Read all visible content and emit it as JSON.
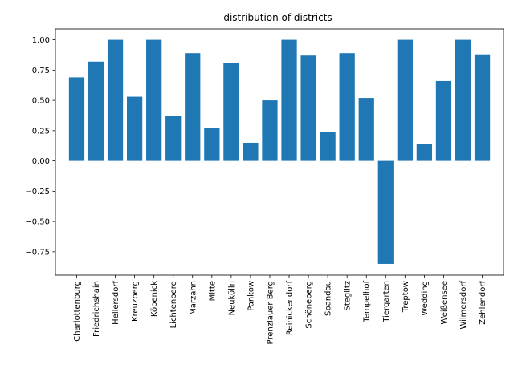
{
  "chart_data": {
    "type": "bar",
    "title": "distribution of districts",
    "xlabel": "",
    "ylabel": "",
    "ylim": [
      -0.943,
      1.09
    ],
    "yticks": [
      1.0,
      0.75,
      0.5,
      0.25,
      0.0,
      -0.25,
      -0.5,
      -0.75
    ],
    "ytick_labels": [
      "1.00",
      "0.75",
      "0.50",
      "0.25",
      "0.00",
      "−0.25",
      "−0.50",
      "−0.75"
    ],
    "bar_color": "#1f77b4",
    "categories": [
      "Charlottenburg",
      "Friedrichshain",
      "Hellersdorf",
      "Kreuzberg",
      "Köpenick",
      "Lichtenberg",
      "Marzahn",
      "Mitte",
      "Neukölln",
      "Pankow",
      "Prenzlauer Berg",
      "Reinickendorf",
      "Schöneberg",
      "Spandau",
      "Steglitz",
      "Tempelhof",
      "Tiergarten",
      "Treptow",
      "Wedding",
      "Weißensee",
      "Wilmersdorf",
      "Zehlendorf"
    ],
    "values": [
      0.69,
      0.82,
      1.0,
      0.53,
      1.0,
      0.37,
      0.89,
      0.27,
      0.81,
      0.15,
      0.5,
      1.0,
      0.87,
      0.24,
      0.89,
      0.52,
      -0.85,
      1.0,
      0.14,
      0.66,
      1.0,
      0.88
    ]
  }
}
